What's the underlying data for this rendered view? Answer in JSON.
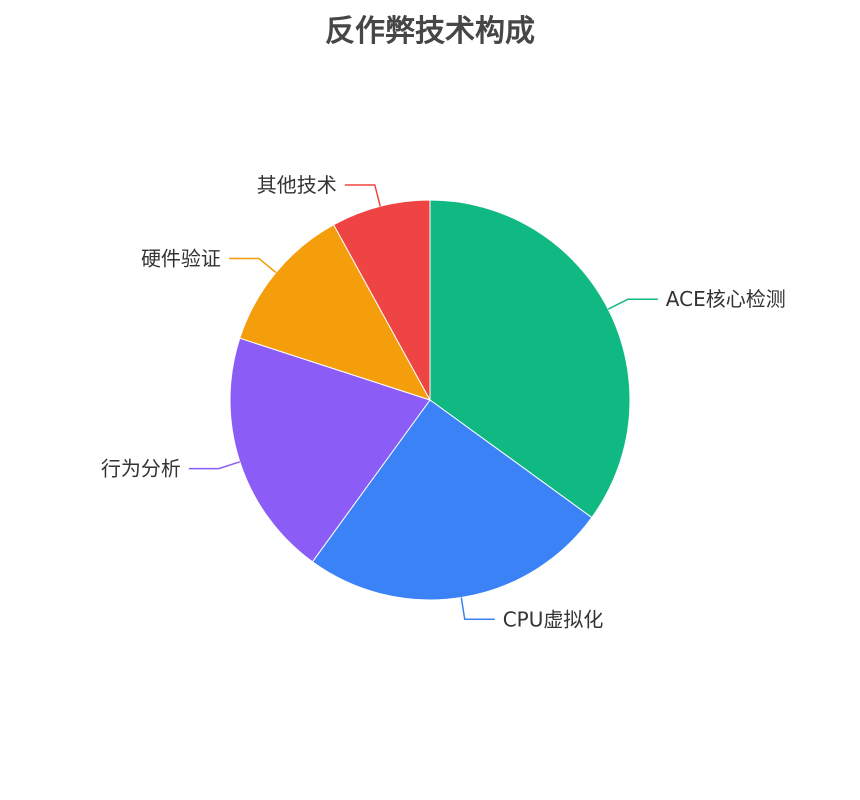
{
  "chart_data": {
    "type": "pie",
    "title": "反作弊技术构成",
    "categories": [
      "ACE核心检测",
      "CPU虚拟化",
      "行为分析",
      "硬件验证",
      "其他技术"
    ],
    "values": [
      35,
      25,
      20,
      12,
      8
    ],
    "colors": [
      "#10b981",
      "#3b82f6",
      "#8b5cf6",
      "#f59e0b",
      "#ef4444"
    ],
    "start_angle": "top",
    "direction": "clockwise",
    "legend": "none"
  }
}
